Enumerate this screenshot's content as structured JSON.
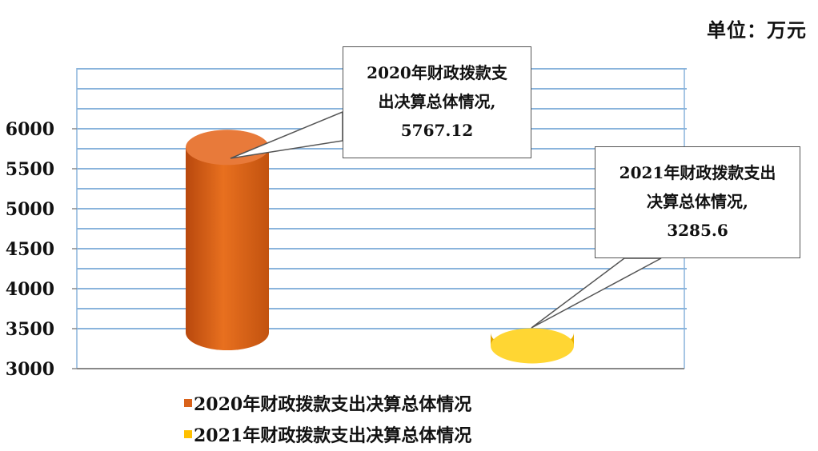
{
  "unit_label": "单位：万元",
  "chart_data": {
    "type": "bar",
    "categories": [
      "2020年财政拨款支出决算总体情况",
      "2021年财政拨款支出决算总体情况"
    ],
    "values": [
      5767.12,
      3285.6
    ],
    "ylim": [
      3000,
      6000
    ],
    "yticks": [
      "3000",
      "3500",
      "4000",
      "4500",
      "5000",
      "5500",
      "6000"
    ],
    "colors": [
      "#d9621a",
      "#ffc000"
    ],
    "grid": true,
    "legend_position": "bottom",
    "callouts": [
      [
        "2020年财政拨款支",
        "出决算总体情况,",
        "5767.12"
      ],
      [
        "2021年财政拨款支出",
        "决算总体情况,",
        "3285.6"
      ]
    ]
  }
}
